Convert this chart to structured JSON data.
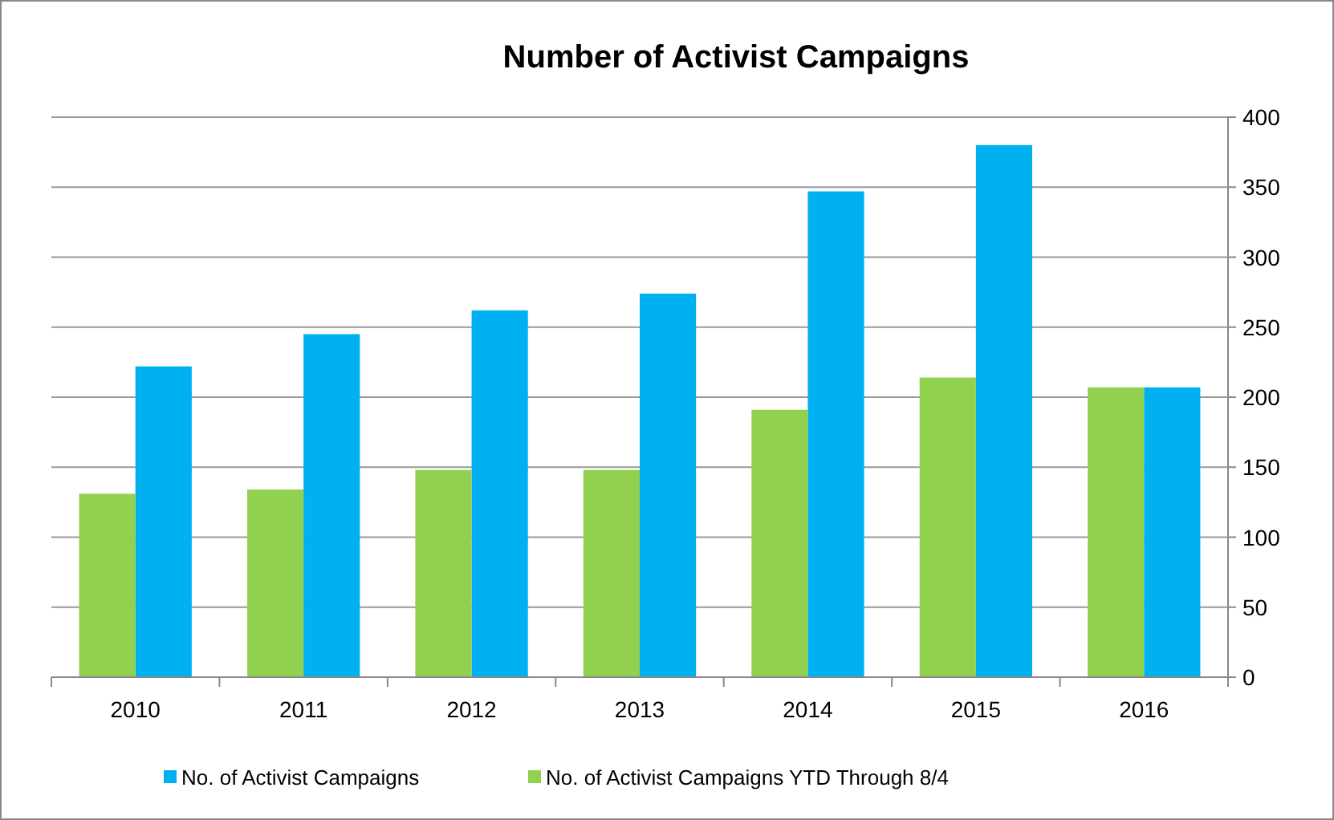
{
  "chart_data": {
    "type": "bar",
    "title": "Number of Activist Campaigns",
    "categories": [
      "2010",
      "2011",
      "2012",
      "2013",
      "2014",
      "2015",
      "2016"
    ],
    "series": [
      {
        "name": "No. of Activist Campaigns",
        "color": "#00b0f0",
        "values": [
          222,
          245,
          262,
          274,
          347,
          380,
          207
        ]
      },
      {
        "name": "No. of Activist Campaigns YTD Through 8/4",
        "color": "#92d050",
        "values": [
          131,
          134,
          148,
          148,
          191,
          214,
          207
        ]
      }
    ],
    "ylim": [
      0,
      400
    ],
    "yticks": [
      0,
      50,
      100,
      150,
      200,
      250,
      300,
      350,
      400
    ],
    "grid": "y",
    "legend": "bottom"
  }
}
